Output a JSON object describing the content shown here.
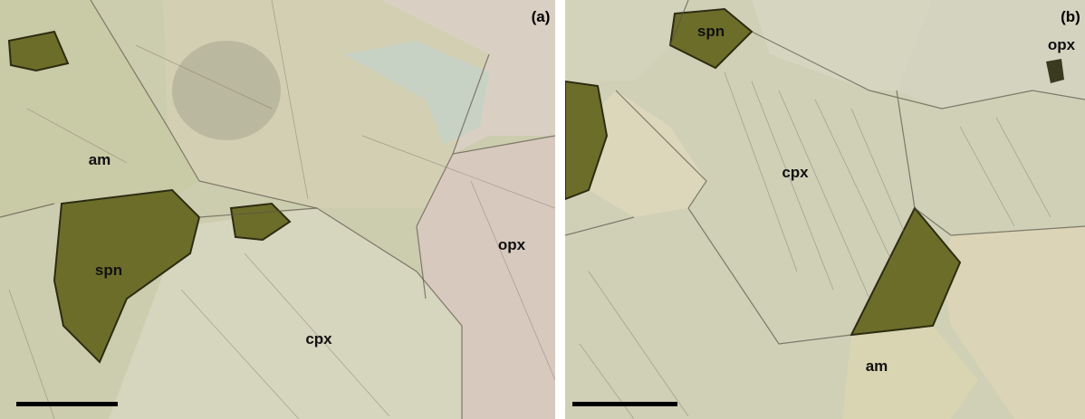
{
  "panels": [
    {
      "label": "(a)",
      "minerals": [
        "am",
        "spn",
        "cpx",
        "opx"
      ]
    },
    {
      "label": "(b)",
      "minerals": [
        "spn",
        "opx",
        "cpx",
        "am"
      ]
    }
  ]
}
